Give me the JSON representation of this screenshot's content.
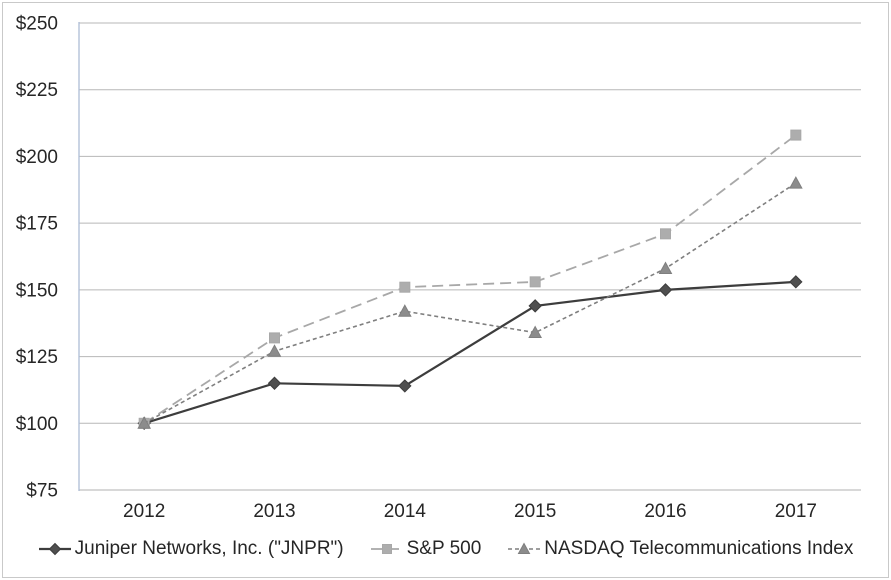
{
  "chart_data": {
    "type": "line",
    "title": "",
    "xlabel": "",
    "ylabel": "",
    "categories": [
      "2012",
      "2013",
      "2014",
      "2015",
      "2016",
      "2017"
    ],
    "series": [
      {
        "name": "Juniper Networks, Inc. (\"JNPR\")",
        "values": [
          100,
          115,
          114,
          144,
          150,
          153
        ],
        "marker": "diamond",
        "dash": "solid",
        "color": "#3d3d3d",
        "marker_fill": "#4f4f4f",
        "line_width": 2.2
      },
      {
        "name": "S&P 500",
        "values": [
          100,
          132,
          151,
          153,
          171,
          208
        ],
        "marker": "square",
        "dash": "long-dash",
        "color": "#a8a8a8",
        "marker_fill": "#adadad",
        "line_width": 1.8
      },
      {
        "name": "NASDAQ Telecommunications Index",
        "values": [
          100,
          127,
          142,
          134,
          158,
          190
        ],
        "marker": "triangle",
        "dash": "short-dash",
        "color": "#7f7f7f",
        "marker_fill": "#8c8c8c",
        "line_width": 1.6
      }
    ],
    "y_axis": {
      "min": 75,
      "max": 250,
      "step": 25,
      "tick_labels": [
        "$250",
        "$225",
        "$200",
        "$175",
        "$150",
        "$125",
        "$100",
        "$75"
      ]
    },
    "grid": true,
    "legend_position": "bottom"
  },
  "colors": {
    "background": "#ffffff",
    "gridline": "#b7b7b7",
    "y_axis_line": "#aebdd6",
    "bottom_axis_line": "#b0b0b0",
    "tick_text": "#262626",
    "frame_border": "#c9c9c9"
  }
}
